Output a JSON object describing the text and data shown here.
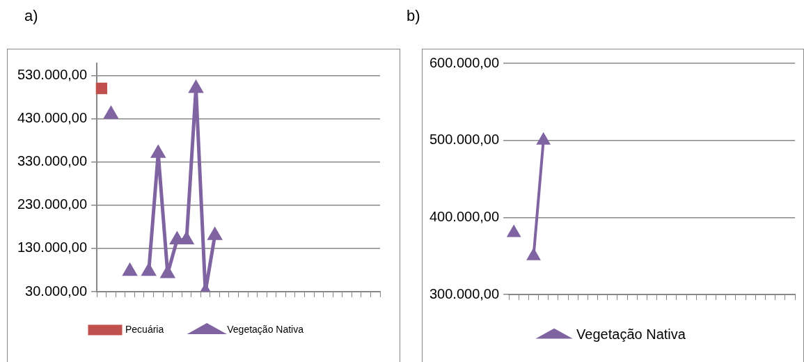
{
  "chart_data": [
    {
      "type": "line",
      "title": "a)",
      "categories": [
        null,
        null,
        null,
        null,
        null,
        null,
        null,
        null,
        null,
        null,
        null,
        null,
        null,
        null,
        null,
        null,
        null,
        null,
        null,
        null,
        null,
        null,
        null,
        null,
        null,
        null,
        null,
        null,
        null,
        null
      ],
      "series": [
        {
          "name": "Pecuária",
          "color": "#c0504d",
          "marker": "square",
          "values": [
            500000,
            null,
            null,
            null,
            null,
            null,
            null,
            null,
            null,
            null,
            null,
            null,
            null,
            null,
            null,
            null,
            null,
            null,
            null,
            null,
            null,
            null,
            null,
            null,
            null,
            null,
            null,
            null,
            null,
            null
          ]
        },
        {
          "name": "Vegetação Nativa",
          "color": "#8064a2",
          "marker": "triangle",
          "values": [
            null,
            440000,
            null,
            77000,
            null,
            77000,
            350000,
            72000,
            150000,
            150000,
            500000,
            30000,
            160000,
            null,
            null,
            null,
            null,
            null,
            null,
            null,
            null,
            null,
            null,
            null,
            null,
            null,
            null,
            null,
            null,
            null
          ]
        }
      ],
      "ylim": [
        30000,
        558000
      ],
      "yticks": [
        {
          "value": 30000,
          "label": "30.000,00"
        },
        {
          "value": 130000,
          "label": "130.000,00"
        },
        {
          "value": 230000,
          "label": "230.000,00"
        },
        {
          "value": 330000,
          "label": "330.000,00"
        },
        {
          "value": 430000,
          "label": "430.000,00"
        },
        {
          "value": 530000,
          "label": "530.000,00"
        }
      ],
      "grid": "y",
      "legend": "bottom",
      "tick_labels": "y"
    },
    {
      "type": "line",
      "title": "b)",
      "categories": [
        null,
        null,
        null,
        null,
        null,
        null,
        null,
        null,
        null,
        null,
        null,
        null,
        null,
        null,
        null,
        null,
        null,
        null,
        null,
        null,
        null,
        null,
        null,
        null,
        null,
        null,
        null,
        null,
        null
      ],
      "series": [
        {
          "name": "Vegetação Nativa",
          "color": "#8064a2",
          "marker": "triangle",
          "values": [
            380000,
            null,
            350000,
            500000,
            null,
            null,
            null,
            null,
            null,
            null,
            null,
            null,
            null,
            null,
            null,
            null,
            null,
            null,
            null,
            null,
            null,
            null,
            null,
            null,
            null,
            null,
            null,
            null,
            null
          ]
        }
      ],
      "ylim": [
        300000,
        600000
      ],
      "yticks": [
        {
          "value": 300000,
          "label": "300.000,00"
        },
        {
          "value": 400000,
          "label": "400.000,00"
        },
        {
          "value": 500000,
          "label": "500.000,00"
        },
        {
          "value": 600000,
          "label": "600.000,00"
        }
      ],
      "grid": "y",
      "legend": "bottom",
      "tick_labels": "y"
    }
  ]
}
